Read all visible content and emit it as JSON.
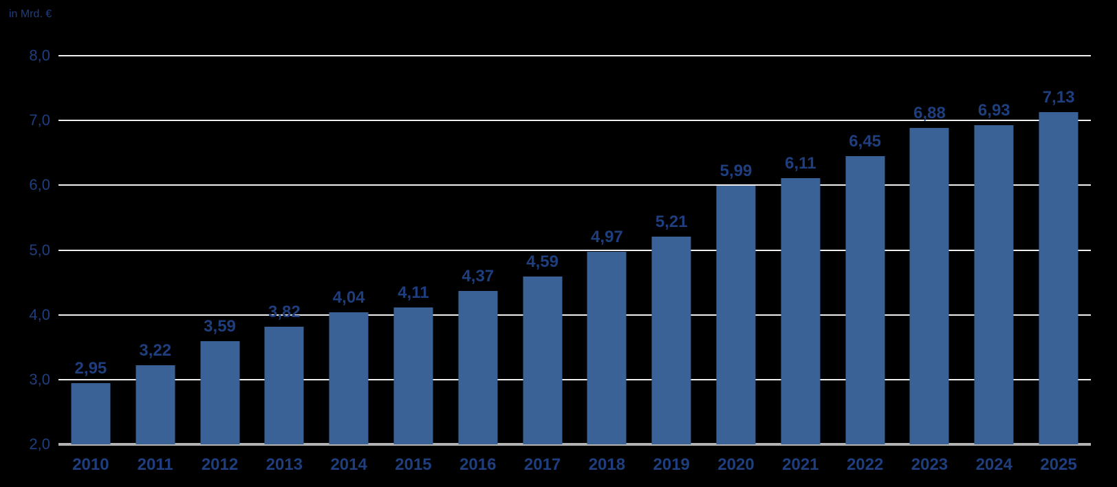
{
  "header": {
    "unit_label": "in Mrd. €"
  },
  "colors": {
    "bar": "#3a6296",
    "label": "#1f3e7e",
    "gridline": "#f0f0f0",
    "baseline": "#b3b3b3",
    "background": "#000000"
  },
  "chart_data": {
    "type": "bar",
    "title": "",
    "ylabel": "in Mrd. €",
    "xlabel": "",
    "categories": [
      "2010",
      "2011",
      "2012",
      "2013",
      "2014",
      "2015",
      "2016",
      "2017",
      "2018",
      "2019",
      "2020",
      "2021",
      "2022",
      "2023",
      "2024",
      "2025"
    ],
    "values": [
      2.95,
      3.22,
      3.59,
      3.82,
      4.04,
      4.11,
      4.37,
      4.59,
      4.97,
      5.21,
      5.99,
      6.11,
      6.45,
      6.88,
      6.93,
      7.13
    ],
    "value_labels": [
      "2,95",
      "3,22",
      "3,59",
      "3,82",
      "4,04",
      "4,11",
      "4,37",
      "4,59",
      "4,97",
      "5,21",
      "5,99",
      "6,11",
      "6,45",
      "6,88",
      "6,93",
      "7,13"
    ],
    "ylim": [
      2.0,
      8.0
    ],
    "yticks": [
      8,
      7,
      6,
      5,
      4,
      3,
      2
    ],
    "ytick_labels": [
      "8,0",
      "7,0",
      "6,0",
      "5,0",
      "4,0",
      "3,0",
      "2,0"
    ],
    "grid": "horizontal-only",
    "legend": "none",
    "decimal_style": "german-comma"
  }
}
